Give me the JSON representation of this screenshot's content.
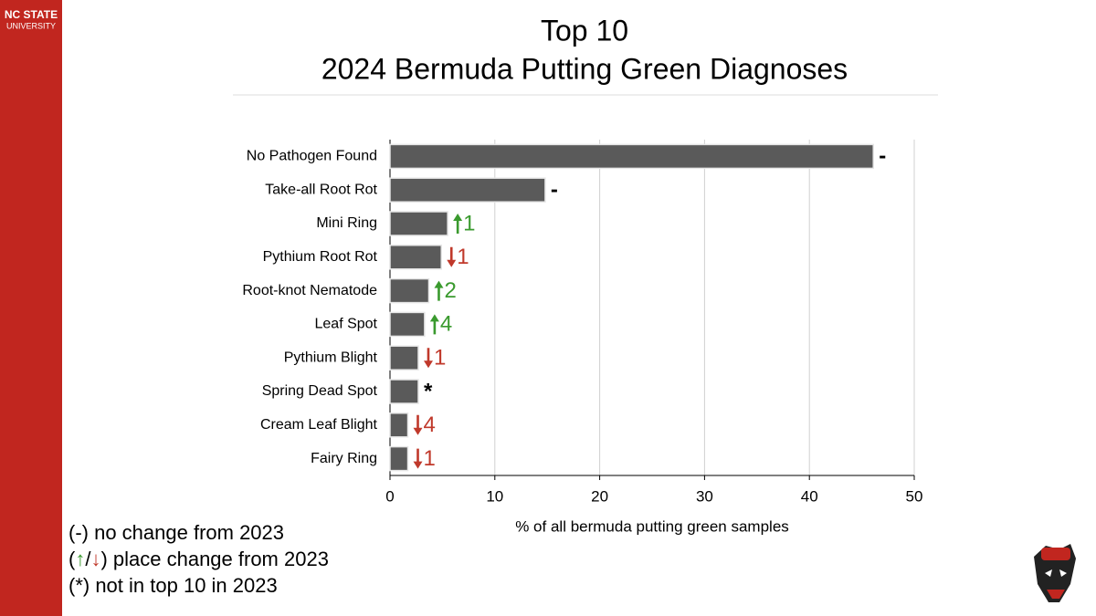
{
  "chart_data": {
    "type": "hbar",
    "title": [
      "Top 10",
      "2024 Bermuda Putting Green Diagnoses"
    ],
    "x_label": "% of all bermuda putting green samples",
    "categories": [
      "No Pathogen Found",
      "Take-all Root Rot",
      "Mini Ring",
      "Pythium Root Rot",
      "Root-knot Nematode",
      "Leaf Spot",
      "Pythium Blight",
      "Spring Dead Spot",
      "Cream Leaf Blight",
      "Fairy Ring"
    ],
    "values": [
      46.1,
      14.8,
      5.5,
      4.9,
      3.7,
      3.3,
      2.7,
      2.7,
      1.7,
      1.7
    ],
    "color": "#5a5a5a",
    "annotations": [
      {
        "label": "-",
        "direction": "none"
      },
      {
        "label": "-",
        "direction": "none"
      },
      {
        "label": "1",
        "direction": "up"
      },
      {
        "label": "1",
        "direction": "down"
      },
      {
        "label": "2",
        "direction": "up"
      },
      {
        "label": "4",
        "direction": "up"
      },
      {
        "label": "1",
        "direction": "down"
      },
      {
        "label": "*",
        "direction": "none"
      },
      {
        "label": "4",
        "direction": "down"
      },
      {
        "label": "1",
        "direction": "down"
      }
    ],
    "up_color": "#3a9a2e",
    "down_color": "#c0392b",
    "xlim": [
      0,
      50
    ],
    "xticks": [
      0,
      10,
      20,
      30,
      40,
      50
    ],
    "grid": true,
    "legend_notes": [
      {
        "parts": [
          "(-) no change from 2023"
        ]
      },
      {
        "parts": [
          "(",
          "↑",
          "/",
          "↓",
          ") place change from 2023"
        ]
      },
      {
        "parts": [
          "(*) not in top 10 in 2023"
        ]
      }
    ]
  },
  "branding": {
    "name": "NC STATE",
    "subname": "UNIVERSITY"
  }
}
